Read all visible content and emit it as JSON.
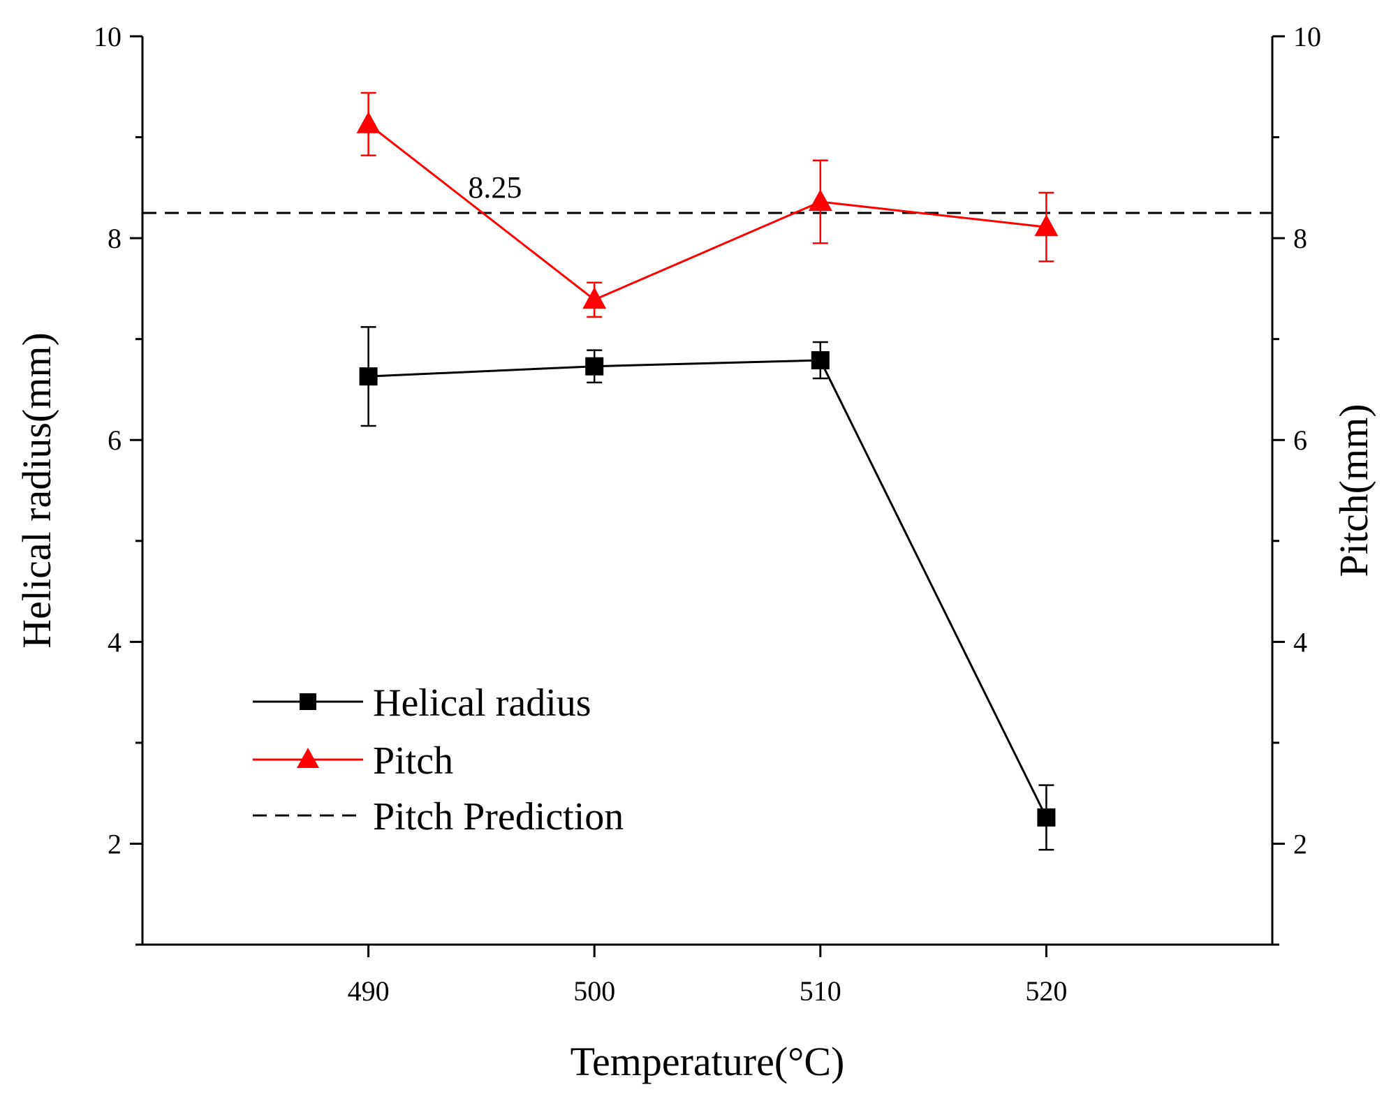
{
  "chart_data": {
    "type": "line",
    "x": [
      490,
      500,
      510,
      520
    ],
    "xlabel": "Temperature(°C)",
    "ylabel_left": "Helical radius(mm)",
    "ylabel_right": "Pitch(mm)",
    "xlim": [
      480,
      530
    ],
    "ylim_left": [
      1,
      10
    ],
    "ylim_right": [
      1,
      10
    ],
    "x_ticks": [
      "490",
      "500",
      "510",
      "520"
    ],
    "y_ticks_left": [
      "2",
      "4",
      "6",
      "8",
      "10"
    ],
    "y_ticks_right": [
      "2",
      "4",
      "6",
      "8",
      "10"
    ],
    "grid": false,
    "legend_position": "lower-left",
    "series": [
      {
        "name": "Helical radius",
        "axis": "left",
        "color": "#000000",
        "marker": "square",
        "values": [
          6.63,
          6.73,
          6.79,
          2.26
        ],
        "errors": [
          0.49,
          0.16,
          0.18,
          0.32
        ]
      },
      {
        "name": "Pitch",
        "axis": "right",
        "color": "#ff0000",
        "marker": "triangle",
        "values": [
          9.13,
          7.39,
          8.36,
          8.11
        ],
        "errors": [
          0.31,
          0.17,
          0.41,
          0.34
        ]
      }
    ],
    "reference_lines": [
      {
        "name": "Pitch Prediction",
        "value": 8.25,
        "style": "dashed",
        "color": "#000000"
      }
    ],
    "annotations": [
      "8.25"
    ]
  }
}
